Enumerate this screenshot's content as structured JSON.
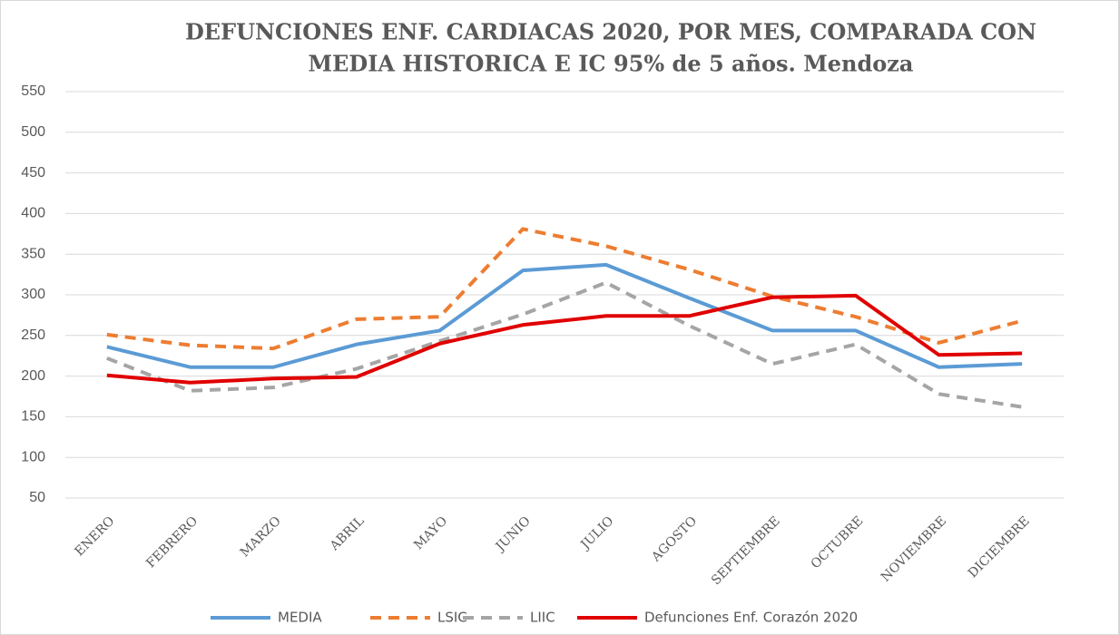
{
  "chart_data": {
    "type": "line",
    "title": [
      "DEFUNCIONES ENF. CARDIACAS 2020, POR MES, COMPARADA CON",
      "MEDIA HISTORICA  E IC 95% de 5 años. Mendoza"
    ],
    "categories": [
      "ENERO",
      "FEBRERO",
      "MARZO",
      "ABRIL",
      "MAYO",
      "JUNIO",
      "JULIO",
      "AGOSTO",
      "SEPTIEMBRE",
      "OCTUBRE",
      "NOVIEMBRE",
      "DICIEMBRE"
    ],
    "series": [
      {
        "name": "MEDIA",
        "color": "#5b9bd5",
        "dashed": false,
        "values": [
          236,
          211,
          211,
          239,
          256,
          330,
          337,
          296,
          256,
          256,
          211,
          215
        ]
      },
      {
        "name": "LSIC",
        "color": "#ed7d31",
        "dashed": true,
        "values": [
          251,
          238,
          234,
          270,
          273,
          381,
          360,
          331,
          298,
          273,
          241,
          268
        ]
      },
      {
        "name": "LIIC",
        "color": "#a5a5a5",
        "dashed": true,
        "values": [
          222,
          182,
          186,
          209,
          243,
          276,
          315,
          262,
          215,
          239,
          178,
          162
        ]
      },
      {
        "name": "Defunciones Enf. Corazón 2020",
        "color": "#e00000",
        "dashed": false,
        "values": [
          201,
          192,
          197,
          199,
          240,
          263,
          274,
          274,
          297,
          299,
          226,
          228
        ]
      }
    ],
    "ylim": [
      50,
      550
    ],
    "yticks": [
      50,
      100,
      150,
      200,
      250,
      300,
      350,
      400,
      450,
      500,
      550
    ],
    "grid": true,
    "legend": "bottom"
  }
}
